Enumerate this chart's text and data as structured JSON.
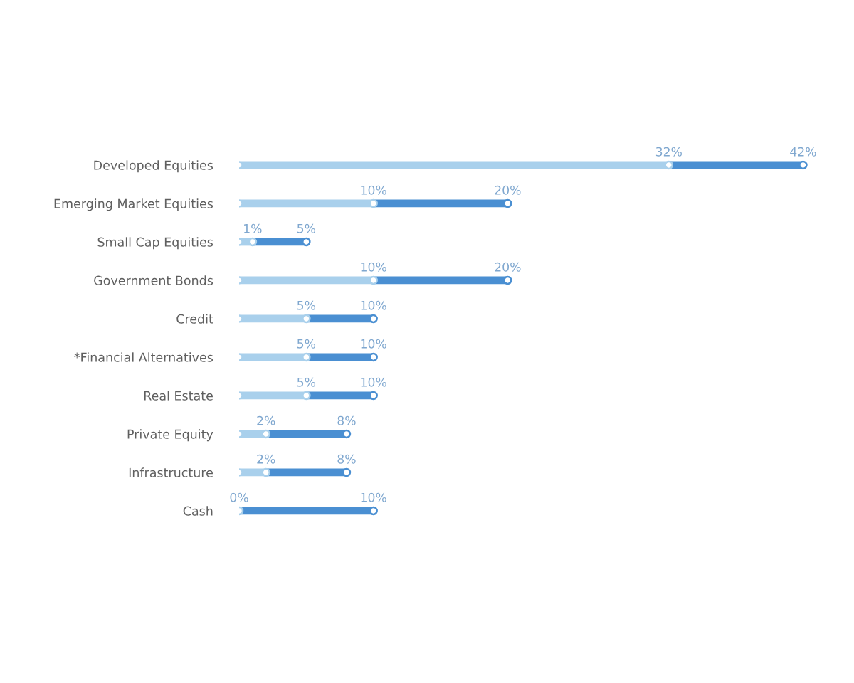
{
  "chart_data": {
    "type": "bar",
    "orientation": "horizontal",
    "stacked": true,
    "tick_labels": "y",
    "categories": [
      "Developed Equities",
      "Emerging Market Equities",
      "Small Cap Equities",
      "Government Bonds",
      "Credit",
      "*Financial Alternatives",
      "Real Estate",
      "Private Equity",
      "Infrastructure",
      "Cash"
    ],
    "series": [
      {
        "color": "#a9d0ec",
        "values": [
          32,
          10,
          1,
          10,
          5,
          5,
          5,
          2,
          2,
          0
        ],
        "value_labels": [
          "32%",
          "10%",
          "1%",
          "10%",
          "5%",
          "5%",
          "5%",
          "2%",
          "2%",
          null
        ]
      },
      {
        "color": "#4a8fd2",
        "values": [
          10,
          10,
          4,
          10,
          5,
          5,
          5,
          6,
          6,
          10
        ]
      }
    ],
    "totals": [
      "42%",
      "20%",
      "5%",
      "20%",
      "10%",
      "10%",
      "10%",
      "8%",
      "8%",
      "10%"
    ],
    "annotations": [
      {
        "text": "0%",
        "x": 0,
        "y": "Cash"
      }
    ]
  }
}
